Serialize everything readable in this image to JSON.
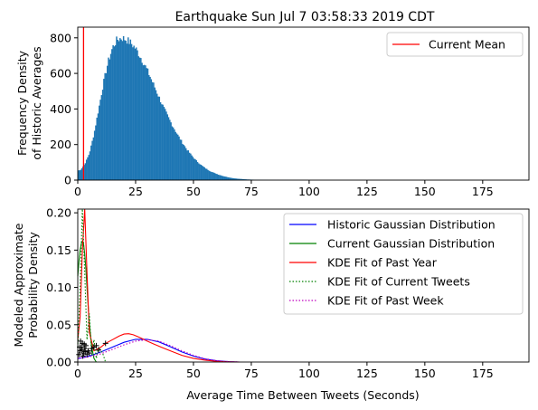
{
  "title": "Earthquake Sun Jul  7 03:58:33 2019 CDT",
  "chart_data": [
    {
      "type": "bar",
      "ylabel": "Frequency Density\nof Historic Averages",
      "xlim": [
        0,
        195
      ],
      "ylim": [
        0,
        860
      ],
      "xticks": [
        0,
        25,
        50,
        75,
        100,
        125,
        150,
        175
      ],
      "yticks": [
        0,
        200,
        400,
        600,
        800
      ],
      "legend": {
        "position": "top-right",
        "entries": [
          "Current Mean"
        ]
      },
      "colors": {
        "bars": "#1f77b4",
        "mean_line": "#ff0000"
      },
      "current_mean": 2.5,
      "histogram": {
        "bin_width": 0.5,
        "x": [
          1,
          3,
          5,
          7,
          9,
          11,
          13,
          15,
          17,
          19,
          21,
          23,
          25,
          27,
          29,
          31,
          33,
          35,
          37,
          39,
          41,
          43,
          45,
          47,
          49,
          51,
          53,
          55,
          57,
          59,
          61,
          63,
          65,
          67,
          69,
          71,
          73,
          75,
          78,
          81,
          84,
          87,
          90,
          95,
          100
        ],
        "y": [
          55,
          90,
          150,
          260,
          400,
          540,
          660,
          745,
          790,
          800,
          790,
          770,
          740,
          695,
          645,
          590,
          530,
          470,
          410,
          355,
          305,
          258,
          215,
          175,
          142,
          112,
          88,
          68,
          52,
          40,
          30,
          22,
          16,
          11,
          8,
          6,
          4,
          3,
          2,
          1.2,
          0.8,
          0.5,
          0.3,
          0.1,
          0
        ]
      }
    },
    {
      "type": "line",
      "xlabel": "Average Time Between Tweets (Seconds)",
      "ylabel": "Modeled Approximate\nProbability Density",
      "xlim": [
        0,
        195
      ],
      "ylim": [
        0,
        0.205
      ],
      "xticks": [
        0,
        25,
        50,
        75,
        100,
        125,
        150,
        175
      ],
      "yticks": [
        0.0,
        0.05,
        0.1,
        0.15,
        0.2
      ],
      "ytick_labels": [
        "0.00",
        "0.05",
        "0.10",
        "0.15",
        "0.20"
      ],
      "legend": {
        "position": "top-right"
      },
      "series": [
        {
          "name": "Historic Gaussian Distribution",
          "color": "#0000ff",
          "style": "solid",
          "x": [
            0,
            5,
            10,
            15,
            20,
            25,
            30,
            35,
            40,
            45,
            50,
            55,
            60,
            65,
            70
          ],
          "y": [
            0.0045,
            0.008,
            0.0135,
            0.02,
            0.0265,
            0.0305,
            0.0305,
            0.027,
            0.0205,
            0.0135,
            0.008,
            0.004,
            0.0017,
            0.0005,
            0
          ]
        },
        {
          "name": "Current Gaussian Distribution",
          "color": "#008000",
          "style": "solid",
          "x": [
            0,
            0.5,
            1,
            1.5,
            2,
            2.5,
            3,
            3.5,
            4,
            4.5,
            5,
            6,
            7,
            8
          ],
          "y": [
            0.115,
            0.135,
            0.15,
            0.158,
            0.162,
            0.158,
            0.145,
            0.125,
            0.1,
            0.075,
            0.052,
            0.02,
            0.005,
            0
          ]
        },
        {
          "name": "KDE Fit of Past Year",
          "color": "#ff0000",
          "style": "solid",
          "x": [
            0,
            1,
            2,
            3,
            4,
            5,
            7,
            10,
            12,
            15,
            18,
            20,
            22,
            24,
            26,
            28,
            30,
            33,
            36,
            40,
            45,
            50,
            55,
            60,
            65,
            70
          ],
          "y": [
            0.03,
            0.06,
            0.15,
            0.205,
            0.12,
            0.04,
            0.015,
            0.02,
            0.025,
            0.03,
            0.035,
            0.0375,
            0.038,
            0.0365,
            0.034,
            0.031,
            0.028,
            0.024,
            0.02,
            0.015,
            0.009,
            0.005,
            0.0025,
            0.001,
            0.0003,
            0
          ]
        },
        {
          "name": "KDE Fit of Current Tweets",
          "color": "#008000",
          "style": "dotted",
          "x": [
            0,
            1,
            2,
            3,
            4,
            5,
            6,
            7,
            8,
            9,
            10,
            11,
            12
          ],
          "y": [
            0.02,
            0.1,
            0.205,
            0.12,
            0.03,
            0.065,
            0.01,
            0.03,
            0.005,
            0.02,
            0.015,
            0.01,
            0
          ]
        },
        {
          "name": "KDE Fit of Past Week",
          "color": "#bf00bf",
          "style": "dotted",
          "x": [
            0,
            5,
            10,
            15,
            20,
            25,
            30,
            35,
            40,
            45,
            50,
            55,
            60,
            65,
            70
          ],
          "y": [
            0.005,
            0.007,
            0.011,
            0.017,
            0.023,
            0.028,
            0.03,
            0.028,
            0.022,
            0.015,
            0.009,
            0.0045,
            0.002,
            0.0006,
            0
          ]
        }
      ],
      "markers": {
        "symbol": "+",
        "color": "#000000",
        "x": [
          0.5,
          1,
          1.5,
          2,
          2.5,
          3,
          3.5,
          4,
          1.2,
          2.2,
          3.2,
          0.8,
          1.8,
          2.8,
          4.5,
          5,
          6,
          7,
          8,
          9,
          12
        ],
        "y": [
          0.01,
          0.015,
          0.02,
          0.025,
          0.012,
          0.018,
          0.022,
          0.01,
          0.028,
          0.008,
          0.014,
          0.02,
          0.016,
          0.024,
          0.015,
          0.012,
          0.018,
          0.02,
          0.022,
          0.016,
          0.025
        ]
      }
    }
  ]
}
